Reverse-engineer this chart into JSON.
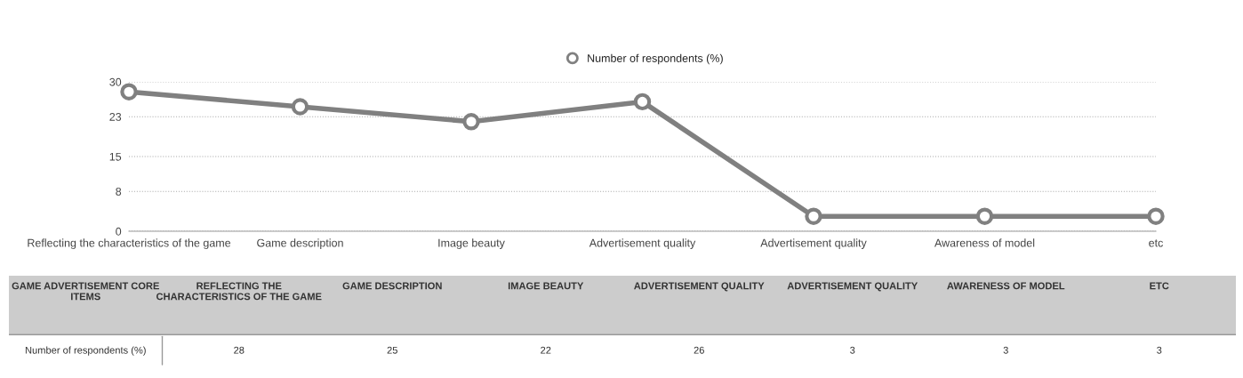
{
  "chart_data": [
    {
      "type": "line",
      "categories": [
        "Reflecting the characteristics of the game",
        "Game description",
        "Image beauty",
        "Advertisement quality",
        "Advertisement quality",
        "Awareness of model",
        "etc"
      ],
      "series": [
        {
          "name": "Number of respondents (%)",
          "color": "#808080",
          "values": [
            28,
            25,
            22,
            26,
            3,
            3,
            3
          ]
        }
      ],
      "ylim": [
        0,
        30
      ],
      "yticks": [
        0,
        8,
        15,
        23,
        30
      ],
      "grid": "y",
      "legend": "top",
      "marker": "circle",
      "line_style": "solid"
    },
    {
      "type": "other",
      "categories": [
        "REFLECTING THE CHARACTERISTICS OF THE GAME",
        "GAME DESCRIPTION",
        "IMAGE BEAUTY",
        "ADVERTISEMENT QUALITY",
        "ADVERTISEMENT QUALITY",
        "AWARENESS OF MODEL",
        "ETC"
      ],
      "series": [
        {
          "name": "Number of respondents (%)",
          "values": [
            28,
            25,
            22,
            26,
            3,
            3,
            3
          ]
        }
      ],
      "data_labels": true,
      "annotations": [
        "GAME ADVERTISEMENT CORE ITEMS"
      ]
    }
  ]
}
